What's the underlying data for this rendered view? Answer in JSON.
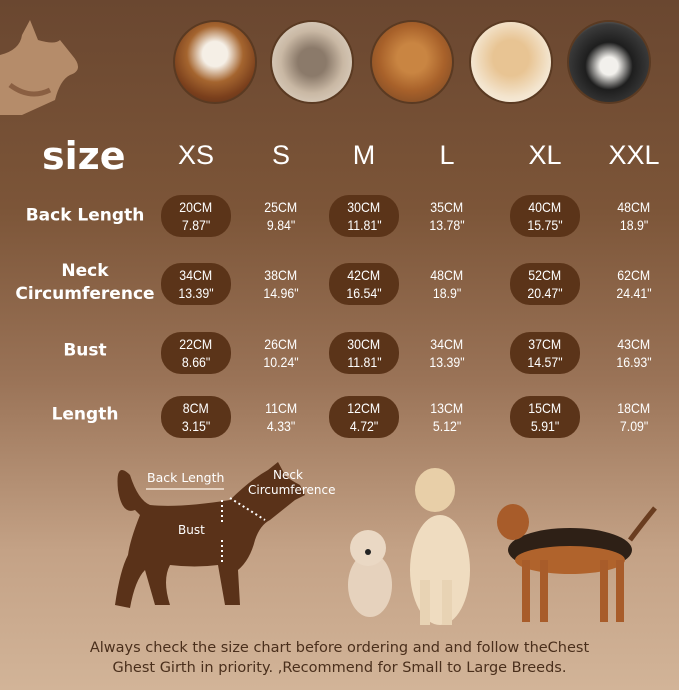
{
  "colors": {
    "pill": "#5b3419",
    "silhouette": "#5a3219",
    "text": "#ffffff",
    "footer": "#4a2f1c"
  },
  "title": "size",
  "sizes": [
    "XS",
    "S",
    "M",
    "L",
    "XL",
    "XXL"
  ],
  "rows": [
    {
      "label": "Back Length",
      "values": [
        [
          "20CM",
          "7.87\""
        ],
        [
          "25CM",
          "9.84\""
        ],
        [
          "30CM",
          "11.81\""
        ],
        [
          "35CM",
          "13.78\""
        ],
        [
          "40CM",
          "15.75\""
        ],
        [
          "48CM",
          "18.9\""
        ]
      ]
    },
    {
      "label": "Neck Circumference",
      "values": [
        [
          "34CM",
          "13.39\""
        ],
        [
          "38CM",
          "14.96\""
        ],
        [
          "42CM",
          "16.54\""
        ],
        [
          "48CM",
          "18.9\""
        ],
        [
          "52CM",
          "20.47\""
        ],
        [
          "62CM",
          "24.41\""
        ]
      ]
    },
    {
      "label": "Bust",
      "values": [
        [
          "22CM",
          "8.66\""
        ],
        [
          "26CM",
          "10.24\""
        ],
        [
          "30CM",
          "11.81\""
        ],
        [
          "34CM",
          "13.39\""
        ],
        [
          "37CM",
          "14.57\""
        ],
        [
          "43CM",
          "16.93\""
        ]
      ]
    },
    {
      "label": "Length",
      "values": [
        [
          "8CM",
          "3.15\""
        ],
        [
          "11CM",
          "4.33\""
        ],
        [
          "12CM",
          "4.72\""
        ],
        [
          "13CM",
          "5.12\""
        ],
        [
          "15CM",
          "5.91\""
        ],
        [
          "18CM",
          "7.09\""
        ]
      ]
    }
  ],
  "diagram": {
    "back_length": "Back Length",
    "neck": "Neck",
    "circumference": "Circumference",
    "bust": "Bust"
  },
  "footer": {
    "line1": "Always check the size chart before ordering and and follow theChest",
    "line2": "Ghest Girth in priority. ,Recommend for Small to Large Breeds."
  }
}
